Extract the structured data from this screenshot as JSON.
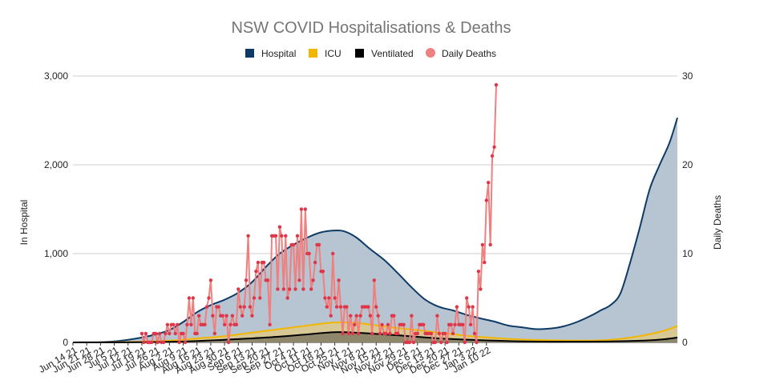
{
  "chart_data": {
    "type": "area",
    "title": "NSW COVID Hospitalisations & Deaths",
    "ylabel_left": "In Hospital",
    "ylabel_right": "Daily Deaths",
    "ylim_left": [
      0,
      3000
    ],
    "ylim_right": [
      0,
      30
    ],
    "yticks_left": [
      "0",
      "1,000",
      "2,000",
      "3,000"
    ],
    "yticks_right": [
      "0",
      "10",
      "20",
      "30"
    ],
    "grid": true,
    "legend_position": "top-center",
    "legend": [
      {
        "name": "Hospital",
        "color": "#0d3a66",
        "marker": "square"
      },
      {
        "name": "ICU",
        "color": "#f2b600",
        "marker": "square"
      },
      {
        "name": "Ventilated",
        "color": "#000000",
        "marker": "square"
      },
      {
        "name": "Daily Deaths",
        "color": "#ee8080",
        "marker": "circle"
      }
    ],
    "x_tick_labels": [
      "Jun 14 21",
      "Jun 21 21",
      "Jun 28 21",
      "Jul 5 21",
      "Jul 12 21",
      "Jul 19 21",
      "Jul 26 21",
      "Aug 2 21",
      "Aug 9 21",
      "Aug 16 21",
      "Aug 23 21",
      "Aug 30 21",
      "Sep 6 21",
      "Sep 13 21",
      "Sep 20 21",
      "Sep 27 21",
      "Oct 4 21",
      "Oct 11 21",
      "Oct 18 21",
      "Oct 25 21",
      "Nov 1 21",
      "Nov 8 21",
      "Nov 15 21",
      "Nov 22 21",
      "Nov 29 21",
      "Dec 6 21",
      "Dec 13 21",
      "Dec 20 21",
      "Dec 27 21",
      "Jan 3 22",
      "Jan 10 22"
    ],
    "x_start": "Jun 14 21",
    "x_end_day": 214,
    "series": [
      {
        "name": "Hospital",
        "axis": "left",
        "color": "#0d3a66",
        "fill": "#b3c1cf",
        "points": [
          [
            0,
            0
          ],
          [
            14,
            3
          ],
          [
            21,
            12
          ],
          [
            28,
            30
          ],
          [
            35,
            55
          ],
          [
            42,
            90
          ],
          [
            49,
            140
          ],
          [
            56,
            230
          ],
          [
            63,
            340
          ],
          [
            70,
            420
          ],
          [
            77,
            480
          ],
          [
            84,
            560
          ],
          [
            91,
            680
          ],
          [
            98,
            850
          ],
          [
            105,
            1000
          ],
          [
            112,
            1100
          ],
          [
            119,
            1180
          ],
          [
            126,
            1240
          ],
          [
            133,
            1260
          ],
          [
            138,
            1250
          ],
          [
            144,
            1180
          ],
          [
            151,
            1050
          ],
          [
            158,
            930
          ],
          [
            165,
            780
          ],
          [
            172,
            620
          ],
          [
            179,
            480
          ],
          [
            186,
            400
          ],
          [
            193,
            360
          ],
          [
            200,
            310
          ],
          [
            207,
            270
          ],
          [
            214,
            235
          ],
          [
            221,
            190
          ],
          [
            228,
            170
          ],
          [
            235,
            150
          ],
          [
            242,
            155
          ],
          [
            249,
            180
          ],
          [
            256,
            230
          ],
          [
            263,
            300
          ],
          [
            268,
            360
          ],
          [
            273,
            420
          ],
          [
            278,
            550
          ],
          [
            283,
            900
          ],
          [
            288,
            1300
          ],
          [
            293,
            1730
          ],
          [
            298,
            2000
          ],
          [
            303,
            2250
          ],
          [
            307,
            2530
          ]
        ]
      },
      {
        "name": "ICU",
        "axis": "left",
        "color": "#f2b600",
        "fill": "#d9c890",
        "points": [
          [
            0,
            0
          ],
          [
            21,
            2
          ],
          [
            35,
            8
          ],
          [
            49,
            20
          ],
          [
            63,
            45
          ],
          [
            77,
            70
          ],
          [
            91,
            110
          ],
          [
            105,
            150
          ],
          [
            119,
            190
          ],
          [
            133,
            225
          ],
          [
            144,
            220
          ],
          [
            158,
            180
          ],
          [
            172,
            145
          ],
          [
            186,
            110
          ],
          [
            200,
            75
          ],
          [
            214,
            50
          ],
          [
            228,
            32
          ],
          [
            242,
            25
          ],
          [
            256,
            20
          ],
          [
            270,
            25
          ],
          [
            280,
            45
          ],
          [
            290,
            80
          ],
          [
            300,
            130
          ],
          [
            307,
            185
          ]
        ]
      },
      {
        "name": "Ventilated",
        "axis": "left",
        "color": "#000000",
        "fill": "#8a8468",
        "points": [
          [
            0,
            0
          ],
          [
            35,
            2
          ],
          [
            56,
            10
          ],
          [
            77,
            30
          ],
          [
            98,
            55
          ],
          [
            119,
            90
          ],
          [
            133,
            115
          ],
          [
            147,
            105
          ],
          [
            165,
            80
          ],
          [
            186,
            45
          ],
          [
            207,
            25
          ],
          [
            228,
            12
          ],
          [
            249,
            8
          ],
          [
            270,
            10
          ],
          [
            290,
            20
          ],
          [
            300,
            35
          ],
          [
            307,
            55
          ]
        ]
      },
      {
        "name": "Daily Deaths",
        "axis": "right",
        "color": "#ee8080",
        "point_color": "#e0364a",
        "points": [
          [
            35,
            1
          ],
          [
            36,
            0
          ],
          [
            37,
            1
          ],
          [
            38,
            0
          ],
          [
            39,
            0
          ],
          [
            40,
            0
          ],
          [
            41,
            1
          ],
          [
            42,
            1
          ],
          [
            43,
            0
          ],
          [
            44,
            1
          ],
          [
            45,
            0
          ],
          [
            46,
            0
          ],
          [
            47,
            1
          ],
          [
            48,
            2
          ],
          [
            49,
            1
          ],
          [
            50,
            2
          ],
          [
            51,
            2
          ],
          [
            52,
            1
          ],
          [
            53,
            2
          ],
          [
            54,
            0
          ],
          [
            55,
            1
          ],
          [
            56,
            1
          ],
          [
            57,
            0
          ],
          [
            58,
            2
          ],
          [
            59,
            5
          ],
          [
            60,
            2
          ],
          [
            61,
            5
          ],
          [
            62,
            1
          ],
          [
            63,
            1
          ],
          [
            64,
            3
          ],
          [
            65,
            2
          ],
          [
            66,
            2
          ],
          [
            67,
            2
          ],
          [
            68,
            4
          ],
          [
            69,
            5
          ],
          [
            70,
            7
          ],
          [
            71,
            3
          ],
          [
            72,
            1
          ],
          [
            73,
            4
          ],
          [
            74,
            4
          ],
          [
            75,
            3
          ],
          [
            76,
            3
          ],
          [
            77,
            2
          ],
          [
            78,
            3
          ],
          [
            79,
            0
          ],
          [
            80,
            2
          ],
          [
            81,
            3
          ],
          [
            82,
            2
          ],
          [
            83,
            2
          ],
          [
            84,
            6
          ],
          [
            85,
            4
          ],
          [
            86,
            3
          ],
          [
            87,
            4
          ],
          [
            88,
            7
          ],
          [
            89,
            12
          ],
          [
            90,
            4
          ],
          [
            91,
            3
          ],
          [
            92,
            5
          ],
          [
            93,
            8
          ],
          [
            94,
            9
          ],
          [
            95,
            5
          ],
          [
            96,
            9
          ],
          [
            97,
            9
          ],
          [
            98,
            7
          ],
          [
            99,
            7
          ],
          [
            100,
            2
          ],
          [
            101,
            12
          ],
          [
            102,
            12
          ],
          [
            103,
            12
          ],
          [
            104,
            6
          ],
          [
            105,
            13
          ],
          [
            106,
            12
          ],
          [
            107,
            6
          ],
          [
            108,
            12
          ],
          [
            109,
            5
          ],
          [
            110,
            6
          ],
          [
            111,
            11
          ],
          [
            112,
            11
          ],
          [
            113,
            6
          ],
          [
            114,
            12
          ],
          [
            115,
            7
          ],
          [
            116,
            15
          ],
          [
            117,
            6
          ],
          [
            118,
            15
          ],
          [
            119,
            10
          ],
          [
            120,
            10
          ],
          [
            121,
            6
          ],
          [
            122,
            7
          ],
          [
            123,
            9
          ],
          [
            124,
            11
          ],
          [
            125,
            11
          ],
          [
            126,
            8
          ],
          [
            127,
            8
          ],
          [
            128,
            5
          ],
          [
            129,
            4
          ],
          [
            130,
            5
          ],
          [
            131,
            3
          ],
          [
            132,
            10
          ],
          [
            133,
            5
          ],
          [
            134,
            4
          ],
          [
            135,
            7
          ],
          [
            136,
            4
          ],
          [
            137,
            1
          ],
          [
            138,
            4
          ],
          [
            139,
            4
          ],
          [
            140,
            1
          ],
          [
            141,
            3
          ],
          [
            142,
            1
          ],
          [
            143,
            2
          ],
          [
            144,
            3
          ],
          [
            145,
            1
          ],
          [
            146,
            3
          ],
          [
            147,
            4
          ],
          [
            148,
            4
          ],
          [
            149,
            4
          ],
          [
            150,
            4
          ],
          [
            151,
            3
          ],
          [
            152,
            1
          ],
          [
            153,
            7
          ],
          [
            154,
            4
          ],
          [
            155,
            3
          ],
          [
            156,
            1
          ],
          [
            157,
            2
          ],
          [
            158,
            1
          ],
          [
            159,
            1
          ],
          [
            160,
            2
          ],
          [
            161,
            1
          ],
          [
            162,
            3
          ],
          [
            163,
            3
          ],
          [
            164,
            1
          ],
          [
            165,
            1
          ],
          [
            166,
            2
          ],
          [
            167,
            2
          ],
          [
            168,
            2
          ],
          [
            169,
            0
          ],
          [
            170,
            0
          ],
          [
            171,
            0
          ],
          [
            172,
            3
          ],
          [
            173,
            0
          ],
          [
            174,
            1
          ],
          [
            175,
            1
          ],
          [
            176,
            2
          ],
          [
            177,
            2
          ],
          [
            178,
            2
          ],
          [
            179,
            1
          ],
          [
            180,
            1
          ],
          [
            181,
            1
          ],
          [
            182,
            1
          ],
          [
            183,
            0
          ],
          [
            184,
            0
          ],
          [
            185,
            3
          ],
          [
            186,
            1
          ],
          [
            187,
            0
          ],
          [
            188,
            1
          ],
          [
            189,
            1
          ],
          [
            190,
            0
          ],
          [
            191,
            2
          ],
          [
            192,
            2
          ],
          [
            193,
            1
          ],
          [
            194,
            2
          ],
          [
            195,
            4
          ],
          [
            196,
            2
          ],
          [
            197,
            2
          ],
          [
            198,
            2
          ],
          [
            199,
            0
          ],
          [
            200,
            5
          ],
          [
            201,
            4
          ],
          [
            202,
            2
          ],
          [
            203,
            4
          ],
          [
            204,
            1
          ],
          [
            205,
            0
          ],
          [
            206,
            8
          ],
          [
            207,
            6
          ],
          [
            208,
            11
          ],
          [
            209,
            9
          ],
          [
            210,
            16
          ],
          [
            211,
            18
          ],
          [
            212,
            11
          ],
          [
            213,
            21
          ],
          [
            214,
            22
          ],
          [
            215,
            29
          ]
        ]
      }
    ]
  }
}
